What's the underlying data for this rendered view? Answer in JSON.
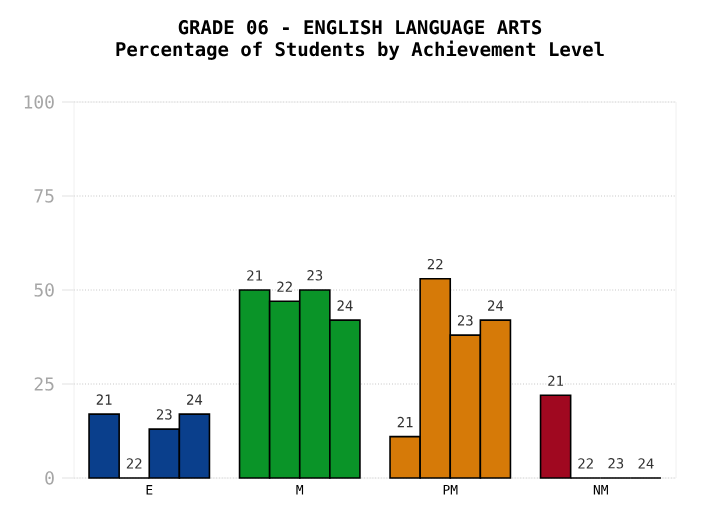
{
  "chart_data": {
    "type": "bar",
    "title": "GRADE 06 - ENGLISH LANGUAGE ARTS",
    "subtitle": "Percentage of Students by Achievement Level",
    "categories": [
      "E",
      "M",
      "PM",
      "NM"
    ],
    "series": [
      {
        "name": "21",
        "colors": [
          "#0a3f8c",
          "#0a9428",
          "#d67a08",
          "#a00820"
        ],
        "values": [
          17,
          50,
          11,
          22
        ]
      },
      {
        "name": "22",
        "colors": [
          "#0a3f8c",
          "#0a9428",
          "#d67a08",
          "#a00820"
        ],
        "values": [
          0,
          47,
          53,
          0
        ]
      },
      {
        "name": "23",
        "colors": [
          "#0a3f8c",
          "#0a9428",
          "#d67a08",
          "#a00820"
        ],
        "values": [
          13,
          50,
          38,
          0
        ]
      },
      {
        "name": "24",
        "colors": [
          "#0a3f8c",
          "#0a9428",
          "#d67a08",
          "#a00820"
        ],
        "values": [
          17,
          42,
          42,
          0
        ]
      }
    ],
    "ylim": [
      0,
      100
    ],
    "yticks": [
      0,
      25,
      50,
      75,
      100
    ],
    "grid": "y"
  }
}
